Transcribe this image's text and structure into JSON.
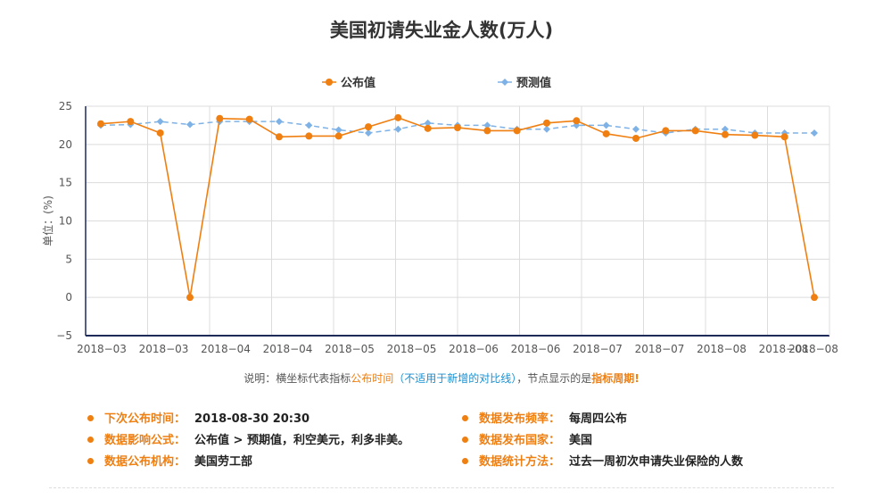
{
  "chart_data": {
    "type": "line",
    "title": "美国初请失业金人数(万人)",
    "ylabel": "单位：(%)",
    "ylim": [
      -5,
      25
    ],
    "yticks": [
      "25",
      "20",
      "15",
      "10",
      "5",
      "0",
      "−5"
    ],
    "xticks": [
      "2018−03",
      "2018−03",
      "2018−04",
      "2018−04",
      "2018−05",
      "2018−05",
      "2018−06",
      "2018−06",
      "2018−07",
      "2018−07",
      "2018−08",
      "2018−08",
      "2018−08"
    ],
    "legend_position": "top-center",
    "series": [
      {
        "name": "公布值",
        "color": "#f07f11",
        "values": [
          22.7,
          23.0,
          21.5,
          0.0,
          23.4,
          23.3,
          21.0,
          21.1,
          21.1,
          22.3,
          23.5,
          22.1,
          22.2,
          21.8,
          21.8,
          22.8,
          23.1,
          21.4,
          20.8,
          21.8,
          21.8,
          21.3,
          21.2,
          21.0,
          0.0
        ]
      },
      {
        "name": "预测值",
        "color": "#7eb2e6",
        "values": [
          22.5,
          22.6,
          23.0,
          22.6,
          23.0,
          23.0,
          23.0,
          22.5,
          21.9,
          21.5,
          22.0,
          22.8,
          22.5,
          22.5,
          22.0,
          22.0,
          22.5,
          22.5,
          22.0,
          21.5,
          22.0,
          22.0,
          21.5,
          21.5,
          21.5
        ]
      }
    ]
  },
  "note": {
    "prefix": "说明：横坐标代表指标",
    "highlight1": "公布时间",
    "paren_open": "（",
    "highlight2": "不适用于新增的对比线",
    "paren_close": "）",
    "middle": "，节点显示的是",
    "highlight3": "指标周期",
    "suffix": "!"
  },
  "info": [
    {
      "label": "下次公布时间：",
      "value": "2018-08-30 20:30"
    },
    {
      "label": "数据影响公式：",
      "value": "公布值 > 预期值，利空美元，利多非美。"
    },
    {
      "label": "数据公布机构：",
      "value": "美国劳工部"
    },
    {
      "label": "数据发布频率：",
      "value": "每周四公布"
    },
    {
      "label": "数据发布国家：",
      "value": "美国"
    },
    {
      "label": "数据统计方法：",
      "value": "过去一周初次申请失业保险的人数"
    }
  ]
}
